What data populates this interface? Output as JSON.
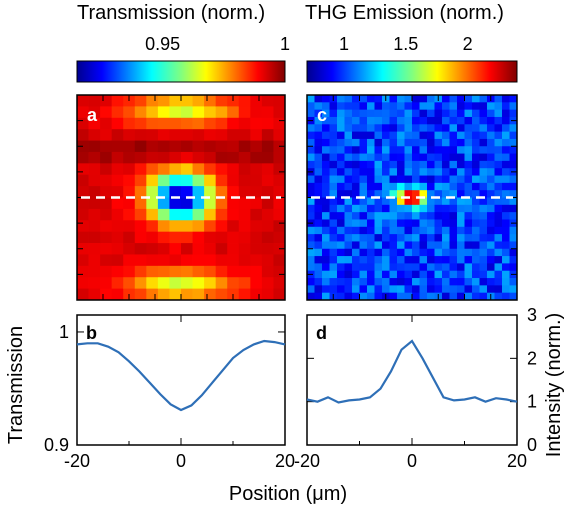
{
  "chart_data": [
    {
      "type": "heatmap",
      "colorbar": {
        "title": "Transmission (norm.)",
        "ticks": [
          "0.95",
          "1"
        ],
        "tick_values": [
          0.95,
          1.0
        ],
        "range": [
          0.915,
          1.0
        ]
      },
      "panel_label": "a",
      "xlim": [
        -20,
        20
      ],
      "line_cut_y": 0,
      "description_of_data": "Ring-shaped dip centered at (0,0); minimum ~0.92 at center, ring ~0.97, background ~0.99, yellow lobes near top and bottom edges"
    },
    {
      "type": "heatmap",
      "colorbar": {
        "title": "THG Emission (norm.)",
        "ticks": [
          "1",
          "1.5",
          "2"
        ],
        "tick_values": [
          1.0,
          1.5,
          2.0
        ],
        "range": [
          0.7,
          2.4
        ]
      },
      "panel_label": "c",
      "xlim": [
        -20,
        20
      ],
      "line_cut_y": 0,
      "description_of_data": "Noisy background ~1.0 with a bright spot ~2.4 centered at (0,0)"
    },
    {
      "type": "line",
      "panel_label": "b",
      "xlabel": "Position (μm)",
      "ylabel": "Transmission",
      "xlim": [
        -20,
        20
      ],
      "ylim": [
        0.9,
        1.015
      ],
      "xticks": [
        "-20",
        "0",
        "20"
      ],
      "yticks": [
        "0.9",
        "1"
      ],
      "color": "#2e6fb7",
      "x": [
        -20,
        -18,
        -16,
        -14,
        -12,
        -10,
        -8,
        -6,
        -4,
        -2,
        0,
        2,
        4,
        6,
        8,
        10,
        12,
        14,
        16,
        18,
        20
      ],
      "y": [
        0.989,
        0.99,
        0.99,
        0.987,
        0.982,
        0.974,
        0.965,
        0.955,
        0.945,
        0.936,
        0.931,
        0.935,
        0.944,
        0.955,
        0.966,
        0.977,
        0.984,
        0.989,
        0.992,
        0.991,
        0.989
      ]
    },
    {
      "type": "line",
      "panel_label": "d",
      "xlabel": "Position (μm)",
      "ylabel": "Intensity (norm.)",
      "xlim": [
        -20,
        20
      ],
      "ylim": [
        0,
        3
      ],
      "xticks": [
        "-20",
        "0",
        "20"
      ],
      "yticks": [
        "0",
        "1",
        "2",
        "3"
      ],
      "color": "#2e6fb7",
      "x": [
        -20,
        -18,
        -16,
        -14,
        -12,
        -10,
        -8,
        -6,
        -4,
        -2,
        0,
        2,
        4,
        6,
        8,
        10,
        12,
        14,
        16,
        18,
        20
      ],
      "y": [
        1.05,
        1.0,
        1.1,
        0.98,
        1.03,
        1.05,
        1.1,
        1.3,
        1.7,
        2.2,
        2.4,
        2.0,
        1.55,
        1.1,
        1.03,
        1.05,
        1.1,
        1.0,
        1.08,
        1.05,
        1.0
      ]
    }
  ],
  "labels": {
    "colorbar_left_title": "Transmission (norm.)",
    "colorbar_right_title": "THG Emission (norm.)",
    "x_axis_label": "Position (μm)",
    "y_left_label": "Transmission",
    "y_right_label": "Intensity (norm.)",
    "panel_a": "a",
    "panel_b": "b",
    "panel_c": "c",
    "panel_d": "d"
  }
}
